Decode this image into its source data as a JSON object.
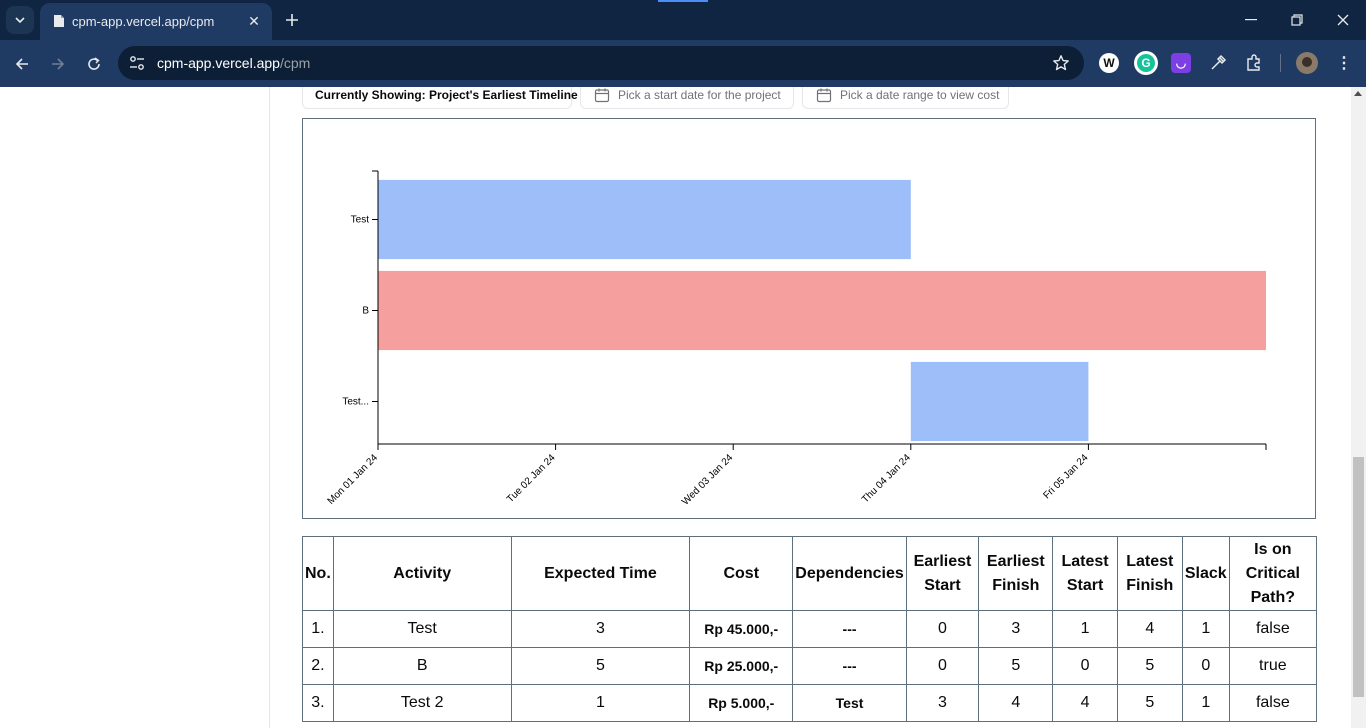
{
  "browser": {
    "tab_title": "cpm-app.vercel.app/cpm",
    "url_host": "cpm-app.vercel.app",
    "url_path": "/cpm",
    "extensions": [
      "wordtune-icon",
      "grammarly-icon",
      "purple-extension-icon",
      "eyedropper-icon",
      "puzzle-icon",
      "profile-avatar"
    ]
  },
  "controls": {
    "showing_label": "Currently Showing: Project's Earliest Timeline",
    "start_date_placeholder": "Pick a start date for the project",
    "cost_range_placeholder": "Pick a date range to view cost"
  },
  "chart_data": {
    "type": "gantt",
    "categories": [
      "Test",
      "B",
      "Test..."
    ],
    "x_ticks": [
      "Mon 01 Jan 24",
      "Tue 02 Jan 24",
      "Wed 03 Jan 24",
      "Thu 04 Jan 24",
      "Fri 05 Jan 24"
    ],
    "x_range": [
      "2024-01-01",
      "2024-01-06"
    ],
    "bars": [
      {
        "task": "Test",
        "start": "2024-01-01",
        "end": "2024-01-04",
        "critical": false
      },
      {
        "task": "B",
        "start": "2024-01-01",
        "end": "2024-01-06",
        "critical": true
      },
      {
        "task": "Test...",
        "start": "2024-01-04",
        "end": "2024-01-05",
        "critical": false
      }
    ],
    "colors": {
      "normal": "#9dbef8",
      "critical": "#f5a09f"
    }
  },
  "table": {
    "headers": [
      "No.",
      "Activity",
      "Expected Time",
      "Cost",
      "Dependencies",
      "Earliest Start",
      "Earliest Finish",
      "Latest Start",
      "Latest Finish",
      "Slack",
      "Is on Critical Path?"
    ],
    "rows": [
      [
        "1.",
        "Test",
        "3",
        "Rp 45.000,-",
        "---",
        "0",
        "3",
        "1",
        "4",
        "1",
        "false"
      ],
      [
        "2.",
        "B",
        "5",
        "Rp 25.000,-",
        "---",
        "0",
        "5",
        "0",
        "5",
        "0",
        "true"
      ],
      [
        "3.",
        "Test 2",
        "1",
        "Rp 5.000,-",
        "Test",
        "3",
        "4",
        "4",
        "5",
        "1",
        "false"
      ]
    ]
  }
}
